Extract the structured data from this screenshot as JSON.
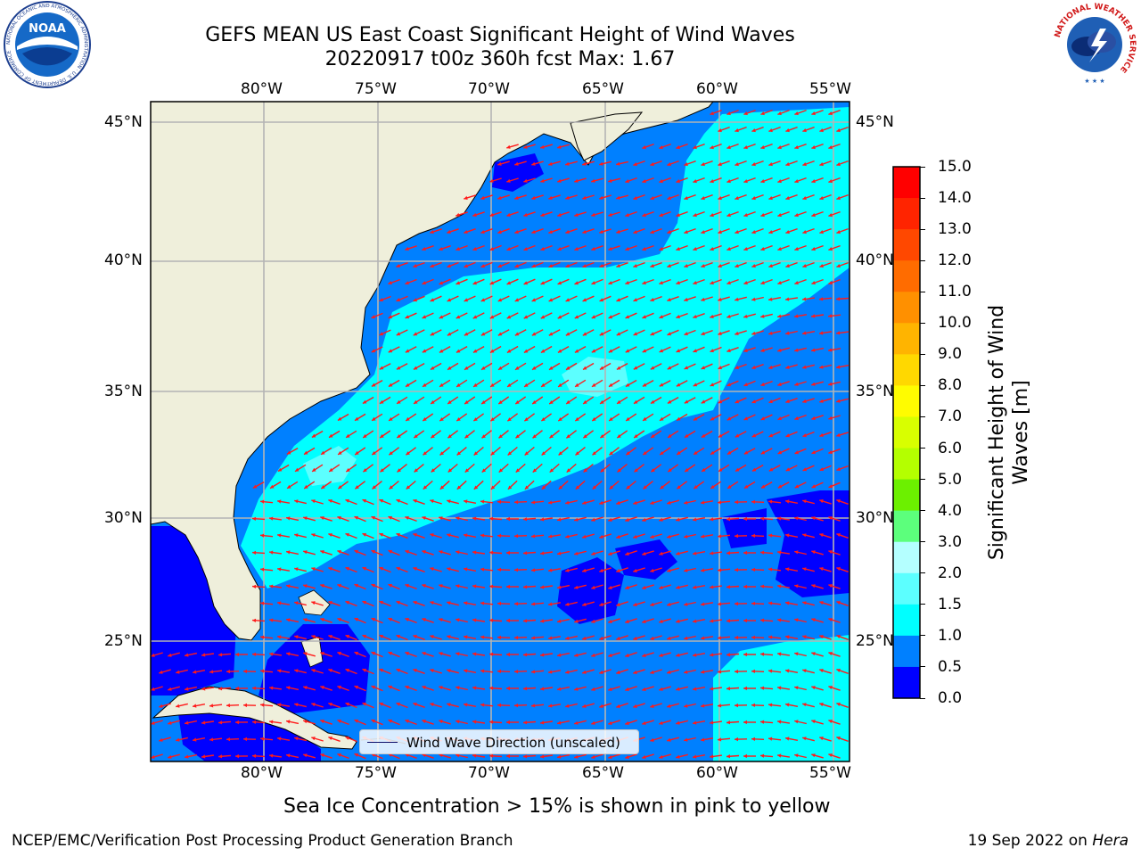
{
  "title": {
    "line1": "GEFS MEAN US East Coast Significant Height of Wind Waves",
    "line2": "20220917 t00z 360h fcst   Max: 1.67"
  },
  "logos": {
    "left": "NOAA",
    "left_ring": "NATIONAL OCEANIC AND ATMOSPHERIC ADMINISTRATION · U.S. DEPARTMENT OF COMMERCE",
    "right_ring": "NATIONAL WEATHER SERVICE"
  },
  "map": {
    "lon_labels": [
      "80°W",
      "75°W",
      "70°W",
      "65°W",
      "60°W",
      "55°W"
    ],
    "lat_labels": [
      "45°N",
      "40°N",
      "35°N",
      "30°N",
      "25°N"
    ],
    "lon_range": [
      -85,
      -54.3
    ],
    "lat_range": [
      20.5,
      46
    ],
    "grid": true,
    "colors": {
      "land": "#efefdb",
      "coast": "#000000",
      "vector": "#ff1a1a",
      "grid": "#b4b4b4"
    },
    "legend_text": "Wind Wave Direction (unscaled)"
  },
  "colorbar": {
    "title": "Significant Height of Wind Waves [m]",
    "ticks": [
      "15.0",
      "14.0",
      "13.0",
      "12.0",
      "11.0",
      "10.0",
      "9.0",
      "8.0",
      "7.0",
      "6.0",
      "5.0",
      "4.0",
      "3.0",
      "2.0",
      "1.5",
      "1.0",
      "0.5",
      "0.0"
    ],
    "colors": [
      "#ff0000",
      "#ff2400",
      "#ff4800",
      "#ff6c00",
      "#ff9000",
      "#ffb400",
      "#ffd800",
      "#fffc00",
      "#d8ff00",
      "#b4ff00",
      "#6cf000",
      "#00e000",
      "#00cc00",
      "#5cff7c",
      "#b4ffff",
      "#5cffff",
      "#00ffff",
      "#0080ff",
      "#0000ff"
    ]
  },
  "caption": "Sea Ice Concentration > 15% is shown in pink to yellow",
  "footer": {
    "left": "NCEP/EMC/Verification Post Processing Product Generation Branch",
    "right_prefix": "19 Sep 2022 on ",
    "right_host": "Hera"
  }
}
